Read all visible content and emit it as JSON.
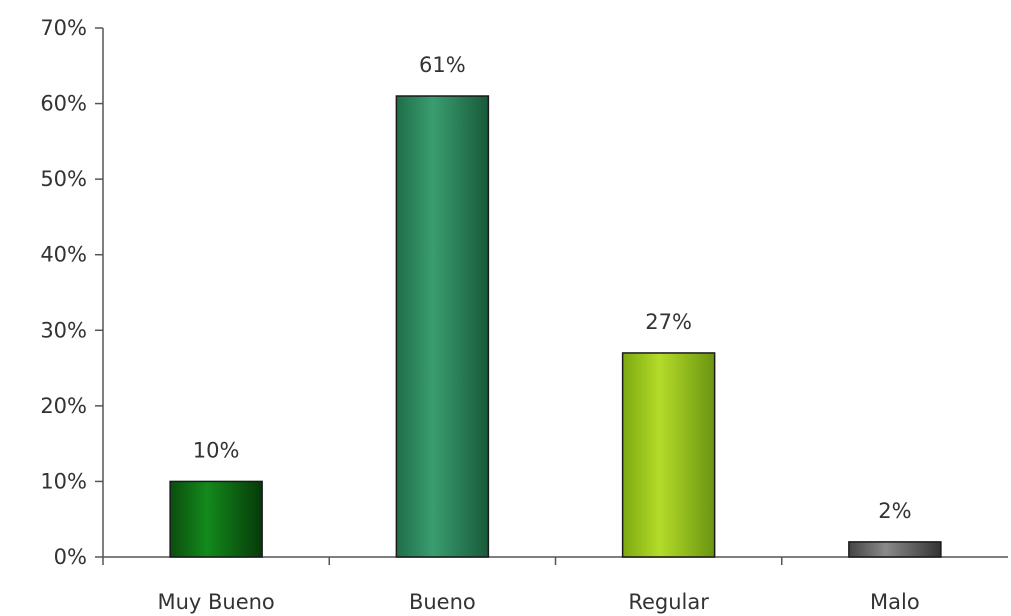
{
  "chart_data": {
    "type": "bar",
    "title": "",
    "xlabel": "",
    "ylabel": "",
    "categories": [
      "Muy Bueno",
      "Bueno",
      "Regular",
      "Malo"
    ],
    "values": [
      10,
      61,
      27,
      2
    ],
    "data_labels": [
      "10%",
      "61%",
      "27%",
      "2%"
    ],
    "ylim": [
      0,
      70
    ],
    "y_ticks": [
      0,
      10,
      20,
      30,
      40,
      50,
      60,
      70
    ],
    "y_tick_labels": [
      "0%",
      "10%",
      "20%",
      "30%",
      "40%",
      "50%",
      "60%",
      "70%"
    ],
    "grid": false,
    "legend": "none",
    "bar_colors": [
      "#0b6e12",
      "#2e8a5e",
      "#9cc418",
      "#6e6e6e"
    ]
  }
}
